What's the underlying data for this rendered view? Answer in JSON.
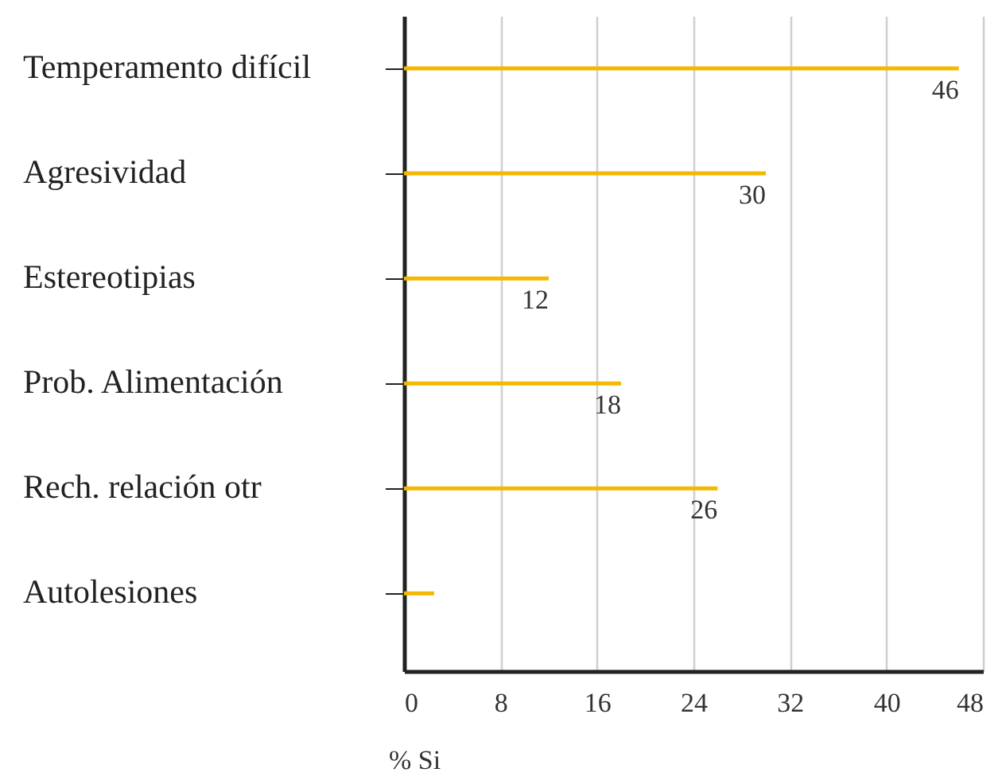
{
  "chart_data": {
    "type": "bar",
    "orientation": "horizontal",
    "xlabel": "% Si",
    "categories": [
      "Temperamento difícil",
      "Agresividad",
      "Estereotipias",
      "Prob. Alimentación",
      "Rech. relación otr",
      "Autolesiones"
    ],
    "values": [
      46,
      30,
      12,
      18,
      26,
      2.5
    ],
    "value_labels": [
      "46",
      "30",
      "12",
      "18",
      "26",
      null
    ],
    "color": "#f5b800",
    "xlim": [
      0,
      48
    ],
    "xticks": [
      0,
      8,
      16,
      24,
      32,
      40,
      48
    ],
    "grid": "x"
  }
}
